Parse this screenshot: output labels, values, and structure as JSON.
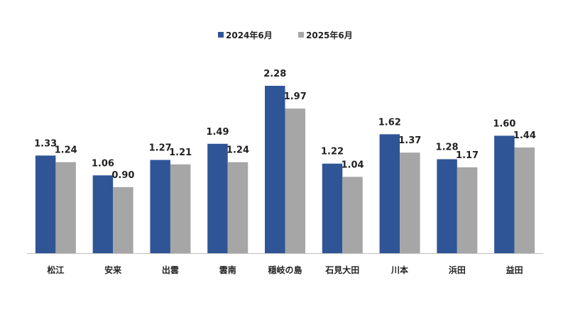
{
  "chart_data": {
    "type": "bar",
    "categories": [
      "松江",
      "安来",
      "出雲",
      "雲南",
      "穏岐の島",
      "石見大田",
      "川本",
      "浜田",
      "益田"
    ],
    "series": [
      {
        "name": "2024年6月",
        "color": "#2f5597",
        "values": [
          1.33,
          1.06,
          1.27,
          1.49,
          2.28,
          1.22,
          1.62,
          1.28,
          1.6
        ],
        "labels": [
          "1.33",
          "1.06",
          "1.27",
          "1.49",
          "2.28",
          "1.22",
          "1.62",
          "1.28",
          "1.60"
        ]
      },
      {
        "name": "2025年6月",
        "color": "#a6a6a6",
        "values": [
          1.24,
          0.9,
          1.21,
          1.24,
          1.97,
          1.04,
          1.37,
          1.17,
          1.44
        ],
        "labels": [
          "1.24",
          "0.90",
          "1.21",
          "1.24",
          "1.97",
          "1.04",
          "1.37",
          "1.17",
          "1.44"
        ]
      }
    ],
    "ylim": [
      0,
      2.28
    ],
    "grid": false,
    "legend_position": "top-center",
    "axis_color": "#bfbfbf"
  }
}
